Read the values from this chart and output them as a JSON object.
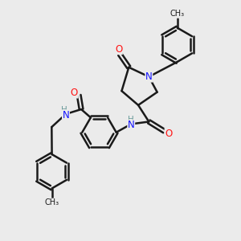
{
  "background_color": "#ebebeb",
  "line_color": "#1a1a1a",
  "bond_width": 1.8,
  "atom_colors": {
    "N": "#1414ff",
    "O": "#ff1414",
    "C": "#1a1a1a",
    "H": "#6a9a9a"
  },
  "font_size": 8.5
}
